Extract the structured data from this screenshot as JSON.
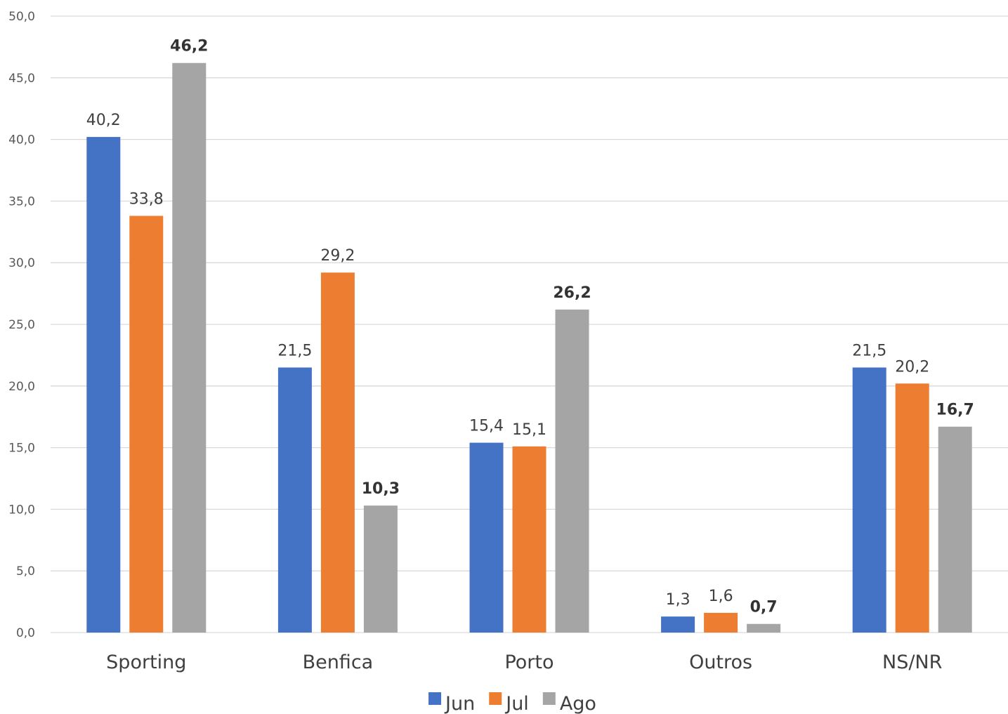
{
  "chart_data": {
    "type": "bar",
    "title": "",
    "xlabel": "",
    "ylabel": "",
    "categories": [
      "Sporting",
      "Benfica",
      "Porto",
      "Outros",
      "NS/NR"
    ],
    "series": [
      {
        "name": "Jun",
        "color": "#4472c4",
        "values": [
          40.2,
          21.5,
          15.4,
          1.3,
          21.5
        ],
        "labels": [
          "40,2",
          "21,5",
          "15,4",
          "1,3",
          "21,5"
        ],
        "label_bold": false
      },
      {
        "name": "Jul",
        "color": "#ed7d31",
        "values": [
          33.8,
          29.2,
          15.1,
          1.6,
          20.2
        ],
        "labels": [
          "33,8",
          "29,2",
          "15,1",
          "1,6",
          "20,2"
        ],
        "label_bold": false
      },
      {
        "name": "Ago",
        "color": "#a5a5a5",
        "values": [
          46.2,
          10.3,
          26.2,
          0.7,
          16.7
        ],
        "labels": [
          "46,2",
          "10,3",
          "26,2",
          "0,7",
          "16,7"
        ],
        "label_bold": true
      }
    ],
    "ylim": [
      0,
      50
    ],
    "yticks": [
      0,
      5,
      10,
      15,
      20,
      25,
      30,
      35,
      40,
      45,
      50
    ],
    "ytick_labels": [
      "0,0",
      "5,0",
      "10,0",
      "15,0",
      "20,0",
      "25,0",
      "30,0",
      "35,0",
      "40,0",
      "45,0",
      "50,0"
    ],
    "grid": true,
    "legend": {
      "position": "bottom",
      "entries": [
        "Jun",
        "Jul",
        "Ago"
      ]
    }
  }
}
